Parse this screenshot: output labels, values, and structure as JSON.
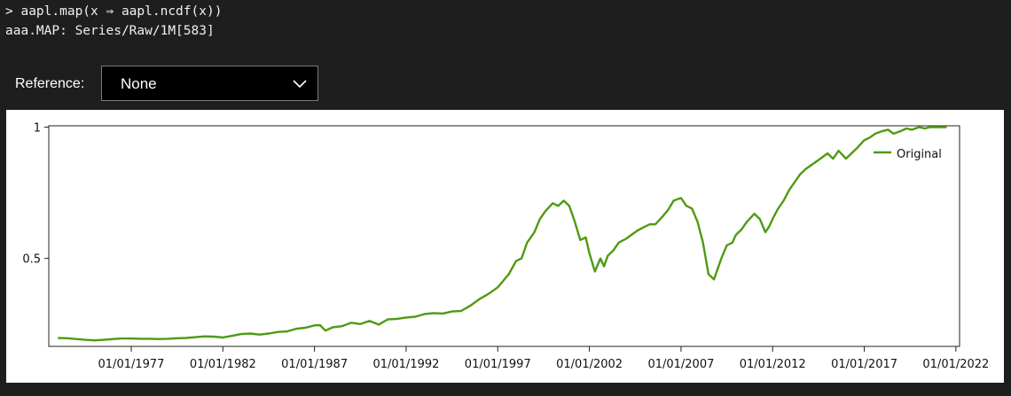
{
  "console": {
    "line1": "> aapl.map(x ⇒ aapl.ncdf(x))",
    "line2": "aaa.MAP: Series/Raw/1M[583]"
  },
  "reference": {
    "label": "Reference:",
    "selected": "None"
  },
  "colors": {
    "series": "#4f9a12",
    "background": "#1e1e1e",
    "plot_bg": "#ffffff"
  },
  "icons": {
    "dropdown": "chevron-down-icon"
  },
  "chart_data": {
    "type": "line",
    "title": "",
    "xlabel": "",
    "ylabel": "",
    "x_ticks": [
      "01/01/1977",
      "01/01/1982",
      "01/01/1987",
      "01/01/1992",
      "01/01/1997",
      "01/01/2002",
      "01/01/2007",
      "01/01/2012",
      "01/01/2017",
      "01/01/2022"
    ],
    "y_ticks": [
      "0.5",
      "1"
    ],
    "xlim": [
      1972.5,
      2022.2
    ],
    "ylim": [
      0.165,
      1.005
    ],
    "grid": false,
    "legend_position": "top-right",
    "series": [
      {
        "name": "Original",
        "x": [
          1973.0,
          1973.5,
          1974.0,
          1974.5,
          1975.0,
          1975.5,
          1976.0,
          1976.5,
          1977.0,
          1977.5,
          1978.0,
          1978.5,
          1979.0,
          1979.5,
          1980.0,
          1980.5,
          1981.0,
          1981.5,
          1982.0,
          1982.5,
          1983.0,
          1983.5,
          1984.0,
          1984.5,
          1985.0,
          1985.5,
          1986.0,
          1986.5,
          1987.0,
          1987.3,
          1987.6,
          1988.0,
          1988.5,
          1989.0,
          1989.5,
          1990.0,
          1990.5,
          1991.0,
          1991.5,
          1992.0,
          1992.5,
          1993.0,
          1993.5,
          1994.0,
          1994.5,
          1995.0,
          1995.5,
          1996.0,
          1996.5,
          1997.0,
          1997.3,
          1997.6,
          1998.0,
          1998.3,
          1998.6,
          1999.0,
          1999.3,
          1999.6,
          2000.0,
          2000.3,
          2000.6,
          2000.9,
          2001.2,
          2001.5,
          2001.8,
          2002.0,
          2002.3,
          2002.6,
          2002.8,
          2003.0,
          2003.3,
          2003.6,
          2004.0,
          2004.3,
          2004.6,
          2005.0,
          2005.3,
          2005.6,
          2006.0,
          2006.3,
          2006.6,
          2007.0,
          2007.3,
          2007.6,
          2007.9,
          2008.2,
          2008.5,
          2008.8,
          2009.0,
          2009.2,
          2009.5,
          2009.8,
          2010.0,
          2010.3,
          2010.6,
          2011.0,
          2011.3,
          2011.6,
          2011.8,
          2012.0,
          2012.3,
          2012.6,
          2012.9,
          2013.2,
          2013.5,
          2013.8,
          2014.2,
          2014.6,
          2015.0,
          2015.3,
          2015.6,
          2016.0,
          2016.3,
          2016.6,
          2017.0,
          2017.3,
          2017.6,
          2018.0,
          2018.3,
          2018.6,
          2019.0,
          2019.3,
          2019.6,
          2020.0,
          2020.3,
          2020.6,
          2021.0,
          2021.5
        ],
        "values": [
          0.197,
          0.196,
          0.193,
          0.19,
          0.188,
          0.19,
          0.193,
          0.195,
          0.195,
          0.194,
          0.194,
          0.193,
          0.194,
          0.196,
          0.197,
          0.2,
          0.203,
          0.202,
          0.199,
          0.205,
          0.212,
          0.214,
          0.21,
          0.214,
          0.22,
          0.222,
          0.232,
          0.236,
          0.245,
          0.246,
          0.225,
          0.238,
          0.242,
          0.255,
          0.25,
          0.262,
          0.248,
          0.268,
          0.27,
          0.275,
          0.278,
          0.288,
          0.292,
          0.29,
          0.298,
          0.3,
          0.32,
          0.345,
          0.365,
          0.39,
          0.415,
          0.44,
          0.49,
          0.5,
          0.56,
          0.6,
          0.65,
          0.68,
          0.71,
          0.7,
          0.72,
          0.7,
          0.64,
          0.57,
          0.58,
          0.52,
          0.45,
          0.5,
          0.47,
          0.51,
          0.53,
          0.56,
          0.575,
          0.59,
          0.605,
          0.62,
          0.63,
          0.63,
          0.66,
          0.685,
          0.72,
          0.73,
          0.7,
          0.69,
          0.64,
          0.56,
          0.44,
          0.42,
          0.46,
          0.5,
          0.55,
          0.56,
          0.59,
          0.61,
          0.64,
          0.67,
          0.65,
          0.6,
          0.62,
          0.65,
          0.69,
          0.72,
          0.76,
          0.79,
          0.82,
          0.84,
          0.86,
          0.88,
          0.9,
          0.88,
          0.91,
          0.88,
          0.9,
          0.92,
          0.95,
          0.96,
          0.975,
          0.985,
          0.99,
          0.975,
          0.985,
          0.995,
          0.99,
          1.0,
          0.995,
          1.0,
          1.0,
          1.0
        ]
      }
    ]
  }
}
